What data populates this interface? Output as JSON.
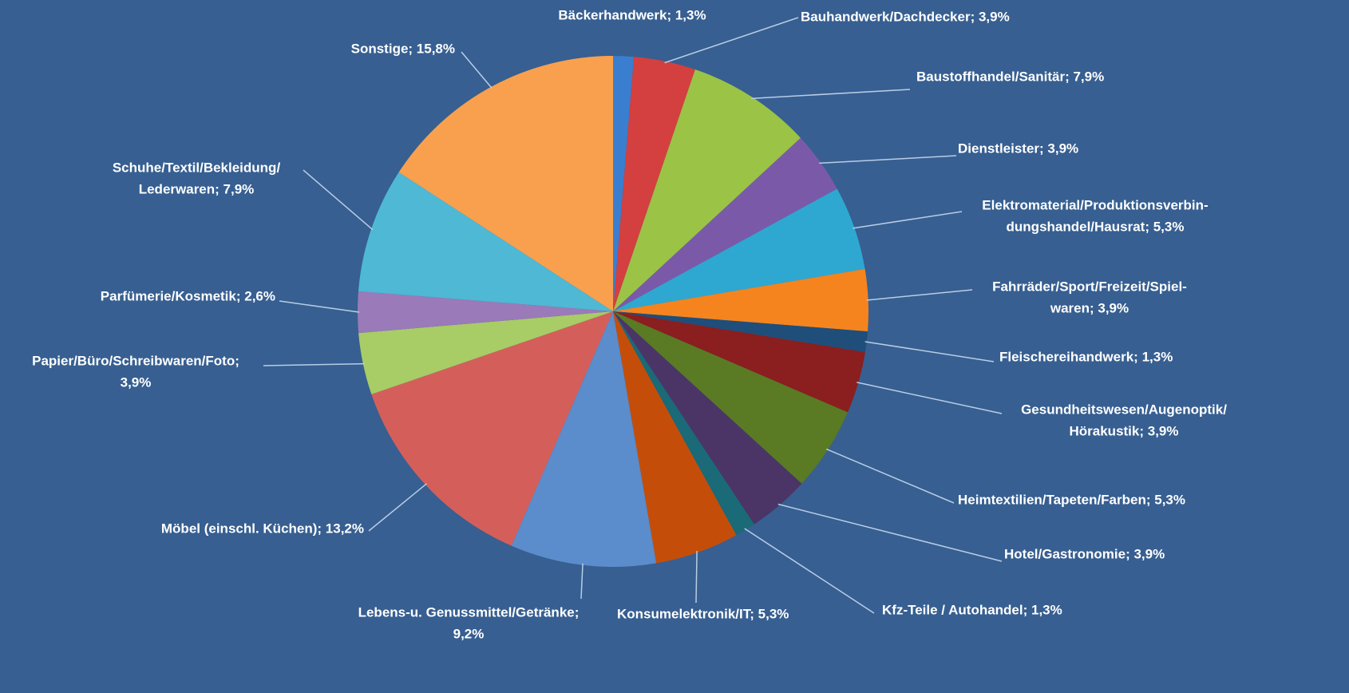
{
  "chart_data": {
    "type": "pie",
    "values": [
      1.3,
      3.9,
      7.9,
      3.9,
      5.3,
      3.9,
      1.3,
      3.9,
      5.3,
      3.9,
      1.3,
      5.3,
      9.2,
      13.2,
      3.9,
      2.6,
      7.9,
      15.8
    ],
    "value_labels": [
      [
        "Bäckerhandwerk; 1,3%"
      ],
      [
        "Bauhandwerk/Dachdecker; 3,9%"
      ],
      [
        "Baustoffhandel/Sanitär; 7,9%"
      ],
      [
        "Dienstleister; 3,9%"
      ],
      [
        "Elektromaterial/Produktionsverbin-",
        "dungshandel/Hausrat; 5,3%"
      ],
      [
        "Fahrräder/Sport/Freizeit/Spiel-",
        "waren; 3,9%"
      ],
      [
        "Fleischereihandwerk; 1,3%"
      ],
      [
        "Gesundheitswesen/Augenoptik/",
        "Hörakustik; 3,9%"
      ],
      [
        "Heimtextilien/Tapeten/Farben; 5,3%"
      ],
      [
        "Hotel/Gastronomie; 3,9%"
      ],
      [
        "Kfz-Teile / Autohandel; 1,3%"
      ],
      [
        "Konsumelektronik/IT; 5,3%"
      ],
      [
        "Lebens-u. Genussmittel/Getränke;",
        "9,2%"
      ],
      [
        "Möbel (einschl. Küchen); 13,2%"
      ],
      [
        "Papier/Büro/Schreibwaren/Foto;",
        "3,9%"
      ],
      [
        "Parfümerie/Kosmetik; 2,6%"
      ],
      [
        "Schuhe/Textil/Bekleidung/",
        "Lederwaren; 7,9%"
      ],
      [
        "Sonstige; 15,8%"
      ]
    ],
    "colors": [
      "#3a7ecf",
      "#d43f3f",
      "#9bc345",
      "#7a5aa8",
      "#2ea8d0",
      "#f5841f",
      "#1f4e7a",
      "#8b1e1e",
      "#5a7a23",
      "#4a3566",
      "#1a6a78",
      "#c44e09",
      "#5b8ccc",
      "#d45f5a",
      "#a8cc66",
      "#9a7ab8",
      "#4fb8d4",
      "#f9a04e"
    ]
  }
}
